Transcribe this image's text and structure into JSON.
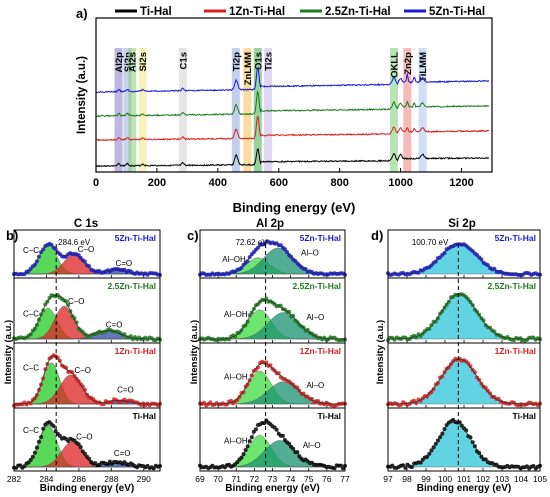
{
  "chart_data": [
    {
      "panel": "a)",
      "type": "line",
      "xlabel": "Binding energy (eV)",
      "ylabel": "Intensity (a.u.)",
      "xlim": [
        0,
        1300
      ],
      "xticks": [
        0,
        200,
        400,
        600,
        800,
        1000,
        1200
      ],
      "legend": [
        {
          "name": "Ti-Hal",
          "color": "#000000"
        },
        {
          "name": "1Zn-Ti-Hal",
          "color": "#d62020"
        },
        {
          "name": "2.5Zn-Ti-Hal",
          "color": "#1e7a1e"
        },
        {
          "name": "5Zn-Ti-Hal",
          "color": "#1a1ad6"
        }
      ],
      "legend_position": "top",
      "bands": [
        {
          "label": "Al2p",
          "x": 74,
          "color": "#8a7bc4"
        },
        {
          "label": "Si2p",
          "x": 103,
          "color": "#9bb0d8"
        },
        {
          "label": "Al2s",
          "x": 119,
          "color": "#88c97a"
        },
        {
          "label": "Si2s",
          "x": 153,
          "color": "#f0e68c"
        },
        {
          "label": "C1s",
          "x": 285,
          "color": "#d0d0d0"
        },
        {
          "label": "Ti2p",
          "x": 459,
          "color": "#8fa9e0"
        },
        {
          "label": "ZnLMM",
          "x": 497,
          "color": "#f2c14e"
        },
        {
          "label": "O1s",
          "x": 531,
          "color": "#3fae4a"
        },
        {
          "label": "Ti2s",
          "x": 565,
          "color": "#c6b6e8"
        },
        {
          "label": "OKLL",
          "x": 978,
          "color": "#7fd07a"
        },
        {
          "label": "Zn2p",
          "x": 1022,
          "color": "#f08080"
        },
        {
          "label": "TiLMM",
          "x": 1072,
          "color": "#a9c4ef"
        }
      ],
      "series": [
        {
          "name": "Ti-Hal",
          "offset": 0,
          "color": "#000000"
        },
        {
          "name": "1Zn-Ti-Hal",
          "offset": 1,
          "color": "#d62020"
        },
        {
          "name": "2.5Zn-Ti-Hal",
          "offset": 2,
          "color": "#1e7a1e"
        },
        {
          "name": "5Zn-Ti-Hal",
          "offset": 3,
          "color": "#1a1ad6"
        }
      ]
    },
    {
      "panel": "b)",
      "title": "C 1s",
      "type": "area",
      "xlabel": "Binding energy (eV)",
      "ylabel": "Intensity (a.u.)",
      "xlim": [
        282,
        291
      ],
      "xticks": [
        282,
        284,
        286,
        288,
        290
      ],
      "reference_line": {
        "x": 284.6,
        "label": "284.6 eV"
      },
      "samples": [
        {
          "name": "5Zn-Ti-Hal",
          "color": "#1a1ad6",
          "components": [
            {
              "label": "C–C",
              "center": 284.1,
              "height": 0.8,
              "width": 1.3,
              "color": "#22cc22"
            },
            {
              "label": "C–O",
              "center": 285.7,
              "height": 0.55,
              "width": 1.5,
              "color": "#dd2222"
            },
            {
              "label": "C=O",
              "center": 288.4,
              "height": 0.12,
              "width": 1.5,
              "color": "#2d4aa0"
            }
          ]
        },
        {
          "name": "2.5Zn-Ti-Hal",
          "color": "#1e7a1e",
          "components": [
            {
              "label": "C–C",
              "center": 284.1,
              "height": 0.58,
              "width": 1.3,
              "color": "#22cc22"
            },
            {
              "label": "C–O",
              "center": 285.1,
              "height": 0.62,
              "width": 1.4,
              "color": "#dd2222"
            },
            {
              "label": "C=O",
              "center": 287.8,
              "height": 0.16,
              "width": 1.8,
              "color": "#2d4aa0"
            }
          ]
        },
        {
          "name": "1Zn-Ti-Hal",
          "color": "#d62020",
          "components": [
            {
              "label": "C–C",
              "center": 284.3,
              "height": 0.78,
              "width": 1.2,
              "color": "#22cc22"
            },
            {
              "label": "C–O",
              "center": 285.5,
              "height": 0.55,
              "width": 1.6,
              "color": "#dd2222"
            },
            {
              "label": "C=O",
              "center": 288.5,
              "height": 0.07,
              "width": 1.5,
              "color": "#2d4aa0"
            }
          ]
        },
        {
          "name": "Ti-Hal",
          "color": "#000000",
          "components": [
            {
              "label": "C–C",
              "center": 284.1,
              "height": 0.82,
              "width": 1.3,
              "color": "#22cc22"
            },
            {
              "label": "C–O",
              "center": 285.6,
              "height": 0.5,
              "width": 1.6,
              "color": "#dd2222"
            },
            {
              "label": "C=O",
              "center": 288.3,
              "height": 0.1,
              "width": 1.6,
              "color": "#2d4aa0"
            }
          ]
        }
      ]
    },
    {
      "panel": "c)",
      "title": "Al 2p",
      "type": "area",
      "xlabel": "Binding energy (eV)",
      "ylabel": "Intensity (a.u.)",
      "xlim": [
        69,
        77
      ],
      "xticks": [
        69,
        70,
        71,
        72,
        73,
        74,
        75,
        76,
        77
      ],
      "reference_line": {
        "x": 72.62,
        "label": "72.62 eV"
      },
      "samples": [
        {
          "name": "5Zn-Ti-Hal",
          "color": "#1a1ad6",
          "components": [
            {
              "label": "Al–OH",
              "center": 72.2,
              "height": 0.45,
              "width": 1.5,
              "color": "#3ddc3d"
            },
            {
              "label": "Al–O",
              "center": 73.3,
              "height": 0.72,
              "width": 1.9,
              "color": "#1a9070"
            }
          ]
        },
        {
          "name": "2.5Zn-Ti-Hal",
          "color": "#1e7a1e",
          "components": [
            {
              "label": "Al–OH",
              "center": 72.3,
              "height": 0.55,
              "width": 1.5,
              "color": "#3ddc3d"
            },
            {
              "label": "Al–O",
              "center": 73.6,
              "height": 0.5,
              "width": 2.0,
              "color": "#1a9070"
            }
          ]
        },
        {
          "name": "1Zn-Ti-Hal",
          "color": "#d62020",
          "components": [
            {
              "label": "Al–OH",
              "center": 72.3,
              "height": 0.62,
              "width": 1.5,
              "color": "#3ddc3d"
            },
            {
              "label": "Al–O",
              "center": 73.6,
              "height": 0.42,
              "width": 2.0,
              "color": "#1a9070"
            }
          ]
        },
        {
          "name": "Ti-Hal",
          "color": "#000000",
          "components": [
            {
              "label": "Al–OH",
              "center": 72.3,
              "height": 0.62,
              "width": 1.5,
              "color": "#3ddc3d"
            },
            {
              "label": "Al–O",
              "center": 73.4,
              "height": 0.52,
              "width": 2.0,
              "color": "#1a9070"
            }
          ]
        }
      ]
    },
    {
      "panel": "d)",
      "title": "Si 2p",
      "type": "area",
      "xlabel": "Binding energy (eV)",
      "ylabel": "Intensity (a.u.)",
      "xlim": [
        97,
        105
      ],
      "xticks": [
        97,
        98,
        99,
        100,
        101,
        102,
        103,
        104,
        105
      ],
      "reference_line": {
        "x": 100.7,
        "label": "100.70 eV"
      },
      "samples": [
        {
          "name": "5Zn-Ti-Hal",
          "color": "#1a1ad6",
          "components": [
            {
              "label": "",
              "center": 100.75,
              "height": 0.85,
              "width": 2.2,
              "color": "#2ec4d8"
            }
          ]
        },
        {
          "name": "2.5Zn-Ti-Hal",
          "color": "#1e7a1e",
          "components": [
            {
              "label": "",
              "center": 100.75,
              "height": 0.85,
              "width": 2.2,
              "color": "#2ec4d8"
            }
          ]
        },
        {
          "name": "1Zn-Ti-Hal",
          "color": "#d62020",
          "components": [
            {
              "label": "",
              "center": 100.75,
              "height": 0.85,
              "width": 2.2,
              "color": "#2ec4d8"
            }
          ]
        },
        {
          "name": "Ti-Hal",
          "color": "#000000",
          "components": [
            {
              "label": "",
              "center": 100.5,
              "height": 0.9,
              "width": 2.0,
              "color": "#2ec4d8"
            }
          ]
        }
      ]
    }
  ]
}
